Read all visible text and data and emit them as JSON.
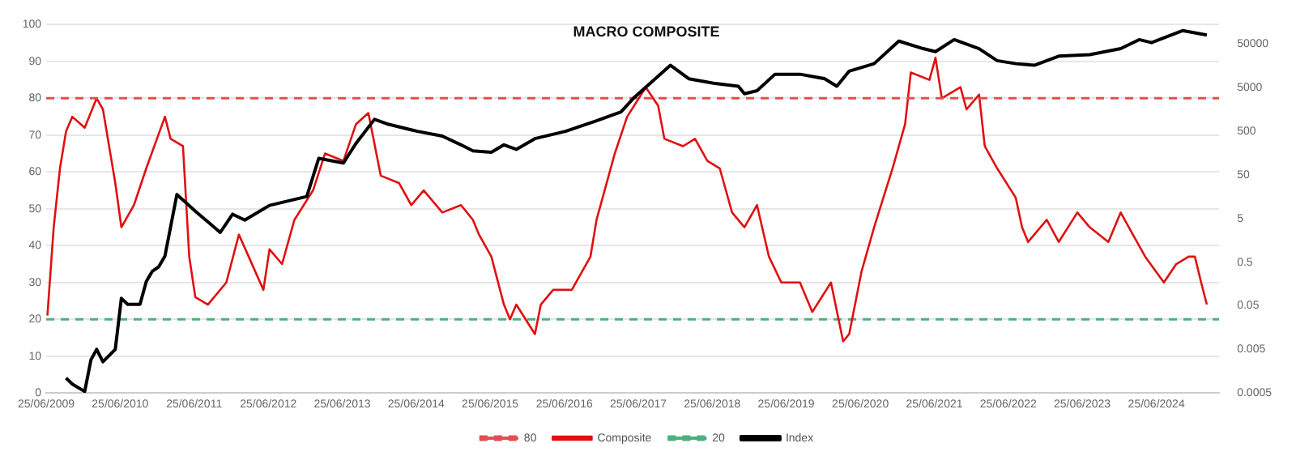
{
  "chart_data": {
    "type": "line",
    "title": "MACRO COMPOSITE",
    "xlim": [
      "2009-06-25",
      "2025-05-01"
    ],
    "xticks": [
      {
        "value": "2009-06-25",
        "label": "25/06/2009"
      },
      {
        "value": "2010-06-25",
        "label": "25/06/2010"
      },
      {
        "value": "2011-06-25",
        "label": "25/06/2011"
      },
      {
        "value": "2012-06-25",
        "label": "25/06/2012"
      },
      {
        "value": "2013-06-25",
        "label": "25/06/2013"
      },
      {
        "value": "2014-06-25",
        "label": "25/06/2014"
      },
      {
        "value": "2015-06-25",
        "label": "25/06/2015"
      },
      {
        "value": "2016-06-25",
        "label": "25/06/2016"
      },
      {
        "value": "2017-06-25",
        "label": "25/06/2017"
      },
      {
        "value": "2018-06-25",
        "label": "25/06/2018"
      },
      {
        "value": "2019-06-25",
        "label": "25/06/2019"
      },
      {
        "value": "2020-06-25",
        "label": "25/06/2020"
      },
      {
        "value": "2021-06-25",
        "label": "25/06/2021"
      },
      {
        "value": "2022-06-25",
        "label": "25/06/2022"
      },
      {
        "value": "2023-06-25",
        "label": "25/06/2023"
      },
      {
        "value": "2024-06-25",
        "label": "25/06/2024"
      }
    ],
    "ylim": [
      0,
      100
    ],
    "yticks": [
      0,
      10,
      20,
      30,
      40,
      50,
      60,
      70,
      80,
      90,
      100
    ],
    "y2lim": [
      0.0005,
      140000
    ],
    "y2ticks": [
      0.0005,
      0.005,
      0.05,
      0.5,
      5,
      50,
      500,
      5000,
      50000
    ],
    "log": "y2",
    "grid": "y",
    "legend": "bottom",
    "ref_lines": [
      {
        "axis": "y",
        "value": 80,
        "label": "80",
        "color": "#e05050",
        "line_style": "dashed"
      },
      {
        "axis": "y",
        "value": 20,
        "label": "20",
        "color": "#4caf7d",
        "line_style": "dashed"
      }
    ],
    "series": [
      {
        "name": "Composite",
        "color": "#e01010",
        "x": [
          "2009-07",
          "2009-08",
          "2009-09",
          "2009-10",
          "2009-11",
          "2010-01",
          "2010-03",
          "2010-04",
          "2010-06",
          "2010-07",
          "2010-09",
          "2010-11",
          "2011-02",
          "2011-03",
          "2011-05",
          "2011-06",
          "2011-07",
          "2011-09",
          "2011-12",
          "2012-02",
          "2012-06",
          "2012-07",
          "2012-09",
          "2012-11",
          "2013-02",
          "2013-04",
          "2013-07",
          "2013-09",
          "2013-11",
          "2014-01",
          "2014-04",
          "2014-06",
          "2014-08",
          "2014-11",
          "2015-02",
          "2015-04",
          "2015-05",
          "2015-07",
          "2015-09",
          "2015-10",
          "2015-11",
          "2016-02",
          "2016-03",
          "2016-05",
          "2016-08",
          "2016-11",
          "2016-12",
          "2017-03",
          "2017-05",
          "2017-08",
          "2017-10",
          "2017-11",
          "2018-02",
          "2018-04",
          "2018-06",
          "2018-08",
          "2018-10",
          "2018-12",
          "2019-02",
          "2019-04",
          "2019-06",
          "2019-09",
          "2019-11",
          "2020-02",
          "2020-04",
          "2020-05",
          "2020-07",
          "2020-09",
          "2020-12",
          "2021-02",
          "2021-03",
          "2021-06",
          "2021-07",
          "2021-08",
          "2021-11",
          "2021-12",
          "2022-02",
          "2022-03",
          "2022-05",
          "2022-08",
          "2022-09",
          "2022-10",
          "2023-01",
          "2023-03",
          "2023-06",
          "2023-08",
          "2023-11",
          "2024-01",
          "2024-03",
          "2024-05",
          "2024-08",
          "2024-10",
          "2024-12",
          "2025-01",
          "2025-02",
          "2025-03"
        ],
        "values": [
          21,
          45,
          61,
          71,
          75,
          72,
          80,
          77,
          57,
          45,
          51,
          61,
          75,
          69,
          67,
          37,
          26,
          24,
          30,
          43,
          28,
          39,
          35,
          47,
          55,
          65,
          63,
          73,
          76,
          59,
          57,
          51,
          55,
          49,
          51,
          47,
          43,
          37,
          24,
          20,
          24,
          16,
          24,
          28,
          28,
          37,
          47,
          65,
          75,
          83,
          78,
          69,
          67,
          69,
          63,
          61,
          49,
          45,
          51,
          37,
          30,
          30,
          22,
          30,
          14,
          16,
          33,
          45,
          61,
          73,
          87,
          85,
          91,
          80,
          83,
          77,
          81,
          67,
          61,
          53,
          45,
          41,
          47,
          41,
          49,
          45,
          41,
          49,
          43,
          37,
          30,
          35,
          37,
          37,
          30,
          24
        ]
      },
      {
        "name": "Index",
        "color": "#000000",
        "axis": "y2",
        "x": [
          "2009-10",
          "2009-11",
          "2010-01",
          "2010-02",
          "2010-03",
          "2010-04",
          "2010-06",
          "2010-07",
          "2010-08",
          "2010-10",
          "2010-11",
          "2010-12",
          "2011-01",
          "2011-02",
          "2011-04",
          "2011-07",
          "2011-11",
          "2012-01",
          "2012-03",
          "2012-07",
          "2013-01",
          "2013-03",
          "2013-07",
          "2013-09",
          "2013-12",
          "2014-02",
          "2014-07",
          "2014-11",
          "2015-02",
          "2015-04",
          "2015-07",
          "2015-09",
          "2015-11",
          "2016-02",
          "2016-07",
          "2016-12",
          "2017-04",
          "2017-06",
          "2017-12",
          "2018-03",
          "2018-07",
          "2018-11",
          "2018-12",
          "2019-02",
          "2019-05",
          "2019-09",
          "2020-01",
          "2020-03",
          "2020-05",
          "2020-09",
          "2021-01",
          "2021-05",
          "2021-07",
          "2021-10",
          "2022-02",
          "2022-05",
          "2022-08",
          "2022-11",
          "2023-03",
          "2023-08",
          "2024-01",
          "2024-04",
          "2024-06",
          "2024-11",
          "2025-03"
        ],
        "values": [
          0.0011,
          0.0008,
          0.00054,
          0.0029,
          0.005,
          0.0026,
          0.005,
          0.074,
          0.054,
          0.054,
          0.18,
          0.31,
          0.39,
          0.69,
          17.8,
          7.4,
          2.4,
          6.3,
          4.6,
          10,
          16,
          120,
          94,
          265,
          940,
          740,
          500,
          390,
          245,
          178,
          165,
          245,
          193,
          340,
          500,
          870,
          1400,
          2870,
          16400,
          8050,
          6340,
          5400,
          3640,
          4260,
          10200,
          10200,
          8050,
          5400,
          12000,
          17800,
          58700,
          39400,
          33600,
          63400,
          39400,
          20900,
          17800,
          16400,
          26500,
          28700,
          39400,
          63400,
          54100,
          102000,
          80500
        ]
      }
    ]
  }
}
